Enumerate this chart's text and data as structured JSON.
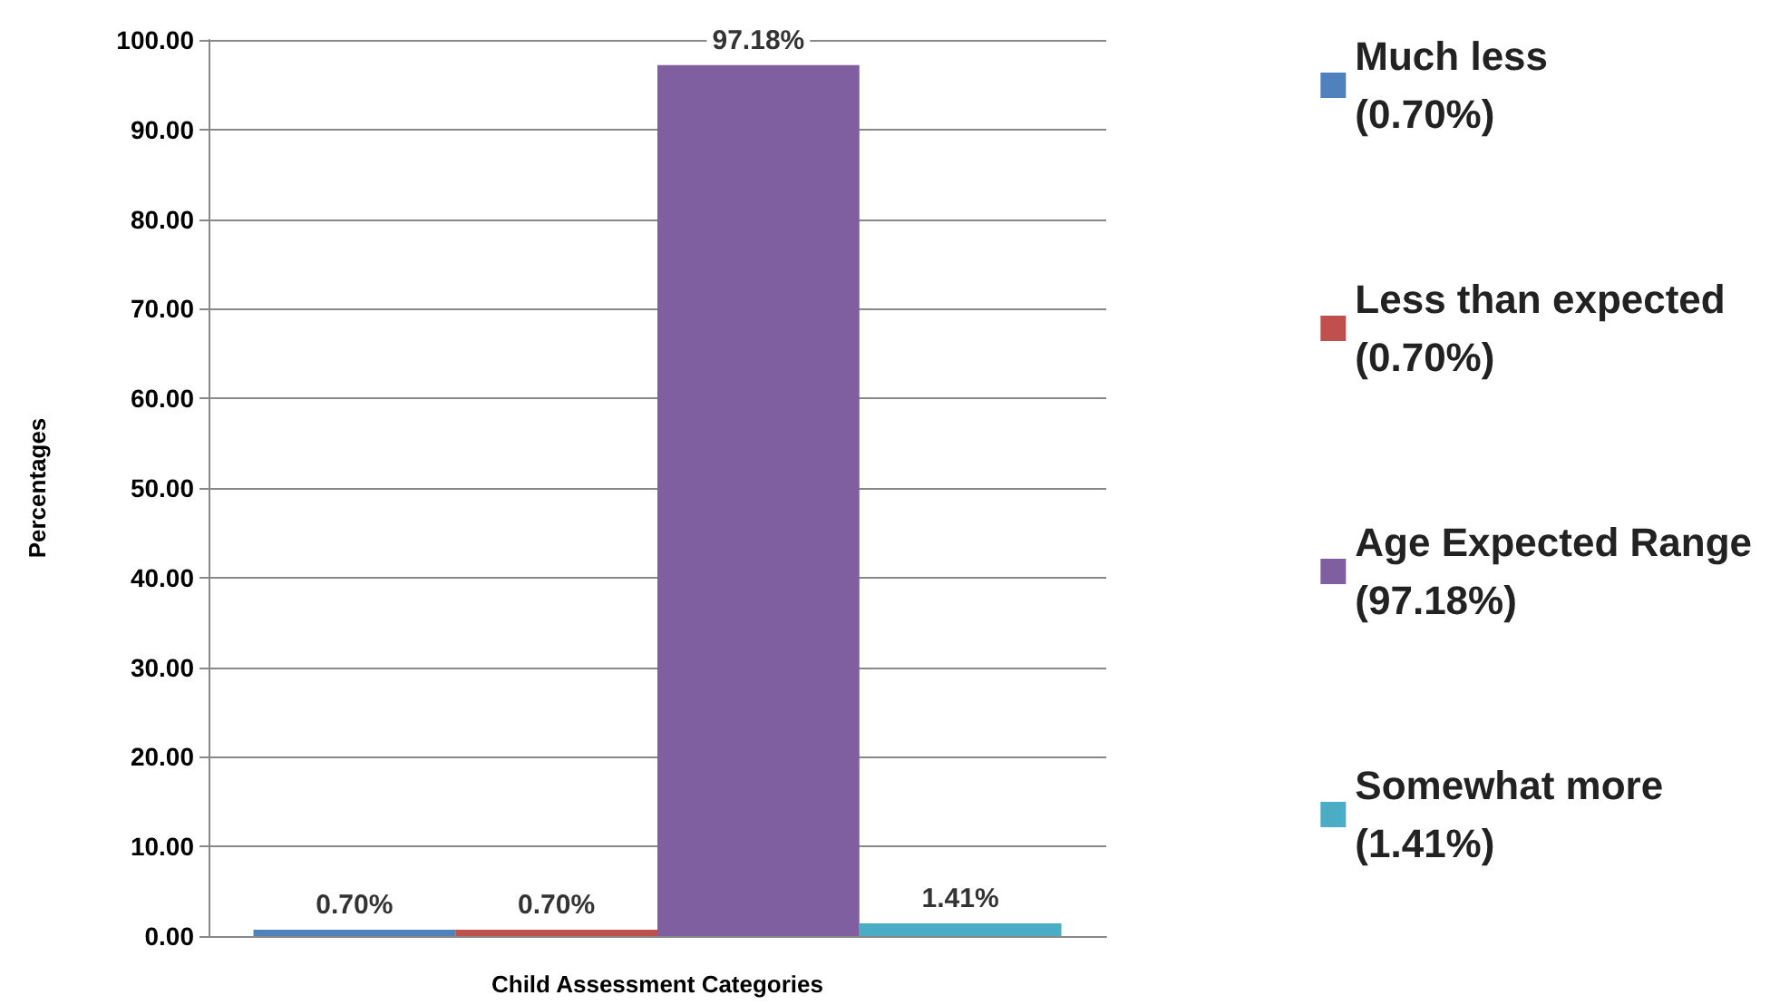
{
  "chart_data": {
    "type": "bar",
    "xlabel": "Child Assessment Categories",
    "ylabel": "Percentages",
    "categories": [
      null
    ],
    "series": [
      {
        "name": "Much less (0.70%)",
        "color": "#4f81bd",
        "values": [
          0.7
        ],
        "value_labels": [
          "0.70%"
        ]
      },
      {
        "name": "Less than expected (0.70%)",
        "color": "#c0504d",
        "values": [
          0.7
        ],
        "value_labels": [
          "0.70%"
        ]
      },
      {
        "name": "Age Expected Range (97.18%)",
        "color": "#7f5f9f",
        "values": [
          97.18
        ],
        "value_labels": [
          "97.18%"
        ]
      },
      {
        "name": "Somewhat more (1.41%)",
        "color": "#4bacc6",
        "values": [
          1.41
        ],
        "value_labels": [
          "1.41%"
        ]
      }
    ],
    "ylim": [
      0,
      100
    ],
    "yticks": [
      {
        "value": 0,
        "label": "0.00"
      },
      {
        "value": 10,
        "label": "10.00"
      },
      {
        "value": 20,
        "label": "20.00"
      },
      {
        "value": 30,
        "label": "30.00"
      },
      {
        "value": 40,
        "label": "40.00"
      },
      {
        "value": 50,
        "label": "50.00"
      },
      {
        "value": 60,
        "label": "60.00"
      },
      {
        "value": 70,
        "label": "70.00"
      },
      {
        "value": 80,
        "label": "80.00"
      },
      {
        "value": 90,
        "label": "90.00"
      },
      {
        "value": 100,
        "label": "100.00"
      }
    ],
    "grid": "y",
    "legend": "right"
  }
}
